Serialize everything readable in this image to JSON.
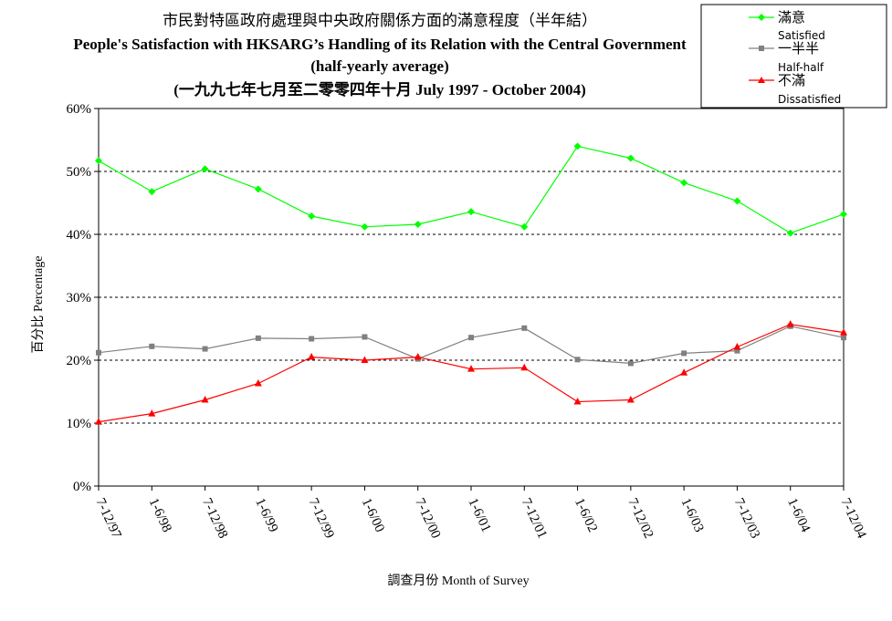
{
  "title": {
    "line1": "市民對特區政府處理與中央政府關係方面的滿意程度（半年結）",
    "line2": "People's Satisfaction with HKSARG’s Handling of its Relation with the Central Government",
    "line3": "(half-yearly average)",
    "line4": "(一九九七年七月至二零零四年十月 July 1997 - October 2004)"
  },
  "legend": {
    "satisfied_zh": "滿意",
    "satisfied_en": "Satisfied",
    "halfhalf_zh": "一半半",
    "halfhalf_en": "Half-half",
    "dissatisfied_zh": "不滿",
    "dissatisfied_en": "Dissatisfied"
  },
  "axes": {
    "ylabel": "百分比 Percentage",
    "xlabel": "調查月份 Month of Survey"
  },
  "colors": {
    "satisfied": "#00ff00",
    "halfhalf": "#808080",
    "dissatisfied": "#ff0000",
    "grid": "#000000"
  },
  "chart_data": {
    "type": "line",
    "categories": [
      "7-12/97",
      "1-6/98",
      "7-12/98",
      "1-6/99",
      "7-12/99",
      "1-6/00",
      "7-12/00",
      "1-6/01",
      "7-12/01",
      "1-6/02",
      "7-12/02",
      "1-6/03",
      "7-12/03",
      "1-6/04",
      "7-12/04"
    ],
    "series": [
      {
        "name": "滿意 Satisfied",
        "key": "satisfied",
        "marker": "diamond",
        "values": [
          51.7,
          46.8,
          50.4,
          47.2,
          42.9,
          41.2,
          41.6,
          43.6,
          41.2,
          54.0,
          52.1,
          48.2,
          45.3,
          40.2,
          43.2
        ]
      },
      {
        "name": "一半半 Half-half",
        "key": "halfhalf",
        "marker": "square",
        "values": [
          21.2,
          22.2,
          21.8,
          23.5,
          23.4,
          23.7,
          20.2,
          23.6,
          25.1,
          20.1,
          19.5,
          21.1,
          21.5,
          25.4,
          23.6
        ]
      },
      {
        "name": "不滿 Dissatisfied",
        "key": "dissatisfied",
        "marker": "triangle",
        "values": [
          10.2,
          11.5,
          13.7,
          16.3,
          20.5,
          20.0,
          20.5,
          18.6,
          18.8,
          13.4,
          13.7,
          18.0,
          22.1,
          25.7,
          24.4
        ]
      }
    ],
    "ylim": [
      0,
      60
    ],
    "yticks": [
      0,
      10,
      20,
      30,
      40,
      50,
      60
    ],
    "ytick_labels": [
      "0%",
      "10%",
      "20%",
      "30%",
      "40%",
      "50%",
      "60%"
    ],
    "grid": true,
    "legend_position": "top-right"
  }
}
